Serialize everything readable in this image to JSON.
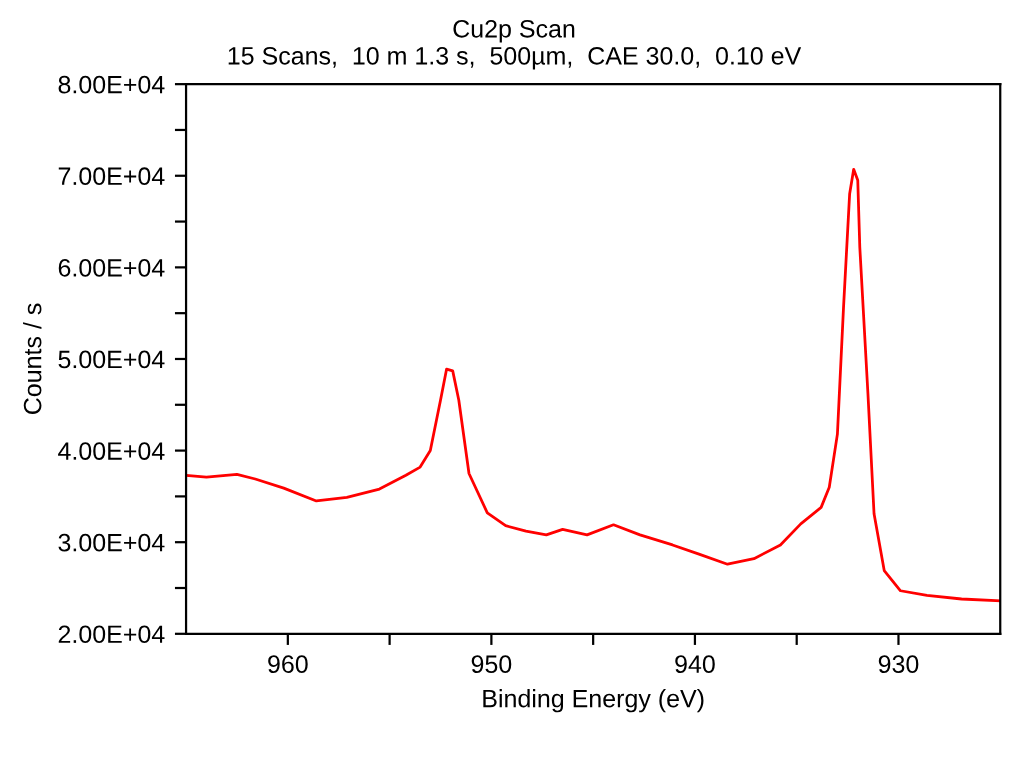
{
  "chart_data": {
    "type": "line",
    "title": "Cu2p Scan",
    "subtitle": "15 Scans,  10 m 1.3 s,  500µm,  CAE 30.0,  0.10 eV",
    "xlabel": "Binding Energy (eV)",
    "ylabel": "Counts / s",
    "x": [
      965,
      964.0,
      962.5,
      961.6,
      960.2,
      958.6,
      957.1,
      955.5,
      954.2,
      953.5,
      953.0,
      952.5,
      952.2,
      951.9,
      951.6,
      951.1,
      950.2,
      949.3,
      948.3,
      947.3,
      946.5,
      945.3,
      944.0,
      942.7,
      941.1,
      939.8,
      938.4,
      937.1,
      935.8,
      934.8,
      933.8,
      933.4,
      933.0,
      932.7,
      932.4,
      932.2,
      932.0,
      931.9,
      931.5,
      931.2,
      930.7,
      929.9,
      928.6,
      926.9,
      925
    ],
    "series": [
      {
        "color": "#ff0000",
        "values": [
          37300,
          37100,
          37400,
          36900,
          35900,
          34500,
          34900,
          35800,
          37300,
          38200,
          40000,
          45500,
          48900,
          48700,
          45500,
          37500,
          33200,
          31800,
          31200,
          30800,
          31400,
          30800,
          31900,
          30800,
          29700,
          28700,
          27600,
          28200,
          29700,
          32000,
          33800,
          36000,
          41800,
          55600,
          68000,
          70700,
          69500,
          62200,
          46200,
          33100,
          26900,
          24700,
          24200,
          23800,
          23600
        ]
      }
    ],
    "xlim": [
      965,
      925
    ],
    "xticks": [
      960,
      {
        "value": 955,
        "label": null
      },
      950,
      {
        "value": 945,
        "label": null
      },
      940,
      {
        "value": 935,
        "label": null
      },
      930
    ],
    "ylim": [
      20000,
      80000
    ],
    "yticks": [
      {
        "value": 20000,
        "label": "2.00E+04"
      },
      {
        "value": 25000,
        "label": null
      },
      {
        "value": 30000,
        "label": "3.00E+04"
      },
      {
        "value": 35000,
        "label": null
      },
      {
        "value": 40000,
        "label": "4.00E+04"
      },
      {
        "value": 45000,
        "label": null
      },
      {
        "value": 50000,
        "label": "5.00E+04"
      },
      {
        "value": 55000,
        "label": null
      },
      {
        "value": 60000,
        "label": "6.00E+04"
      },
      {
        "value": 65000,
        "label": null
      },
      {
        "value": 70000,
        "label": "7.00E+04"
      },
      {
        "value": 75000,
        "label": null
      },
      {
        "value": 80000,
        "label": "8.00E+04"
      }
    ],
    "grid": false,
    "marker": "none",
    "line_style": "solid"
  }
}
